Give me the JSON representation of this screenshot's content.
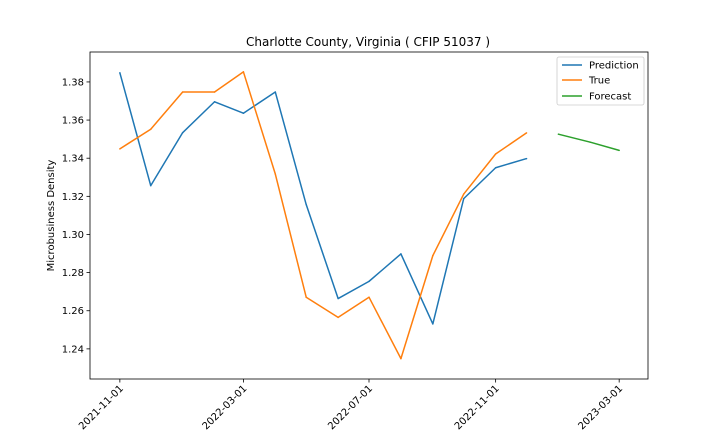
{
  "chart_data": {
    "type": "line",
    "title": "Charlotte County, Virginia ( CFIP 51037 )",
    "xlabel": "",
    "ylabel": "Microbusiness Density",
    "xlim": [
      "2021-10-03",
      "2023-03-29"
    ],
    "ylim": [
      1.2242,
      1.3957
    ],
    "x_ticks": [
      "2021-11-01",
      "2022-03-01",
      "2022-07-01",
      "2022-11-01",
      "2023-03-01"
    ],
    "y_ticks": [
      1.24,
      1.26,
      1.28,
      1.3,
      1.32,
      1.34,
      1.36,
      1.38
    ],
    "y_tick_labels": [
      "1.24",
      "1.26",
      "1.28",
      "1.30",
      "1.32",
      "1.34",
      "1.36",
      "1.38"
    ],
    "grid": false,
    "legend_position": "top-right",
    "series": [
      {
        "name": "Prediction",
        "color": "#1f77b4",
        "x": [
          "2021-11-01",
          "2021-12-01",
          "2022-01-01",
          "2022-02-01",
          "2022-03-01",
          "2022-04-01",
          "2022-05-01",
          "2022-06-01",
          "2022-07-01",
          "2022-08-01",
          "2022-09-01",
          "2022-10-01",
          "2022-11-01",
          "2022-12-01"
        ],
        "y": [
          1.3848,
          1.3256,
          1.3534,
          1.3696,
          1.3636,
          1.3747,
          1.3157,
          1.2664,
          1.2754,
          1.2898,
          1.2531,
          1.3188,
          1.335,
          1.3398
        ]
      },
      {
        "name": "True",
        "color": "#ff7f0e",
        "x": [
          "2021-11-01",
          "2021-12-01",
          "2022-01-01",
          "2022-02-01",
          "2022-03-01",
          "2022-04-01",
          "2022-05-01",
          "2022-06-01",
          "2022-07-01",
          "2022-08-01",
          "2022-09-01",
          "2022-10-01",
          "2022-11-01",
          "2022-12-01"
        ],
        "y": [
          1.3449,
          1.3552,
          1.3747,
          1.3747,
          1.3853,
          1.3317,
          1.2671,
          1.2565,
          1.2671,
          1.2349,
          1.2889,
          1.3212,
          1.3422,
          1.3533
        ]
      },
      {
        "name": "Forecast",
        "color": "#2ca02c",
        "x": [
          "2023-01-01",
          "2023-02-01",
          "2023-03-01"
        ],
        "y": [
          1.3526,
          1.3484,
          1.3441
        ]
      }
    ]
  }
}
